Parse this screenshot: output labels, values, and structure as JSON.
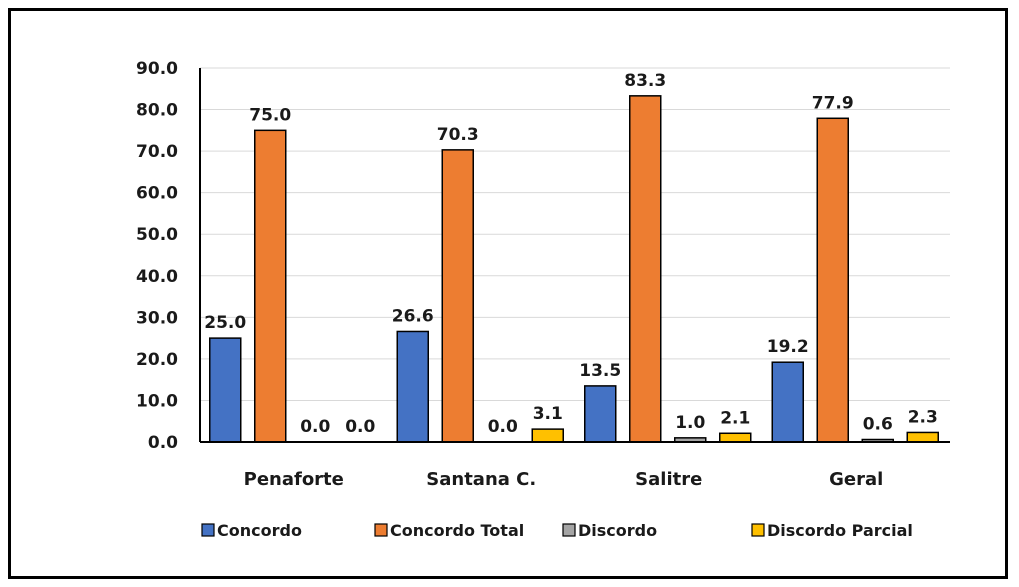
{
  "chart_data": {
    "type": "bar",
    "title": "",
    "xlabel": "",
    "ylabel": "",
    "ylim": [
      0,
      90
    ],
    "y_ticks": [
      "0.0",
      "10.0",
      "20.0",
      "30.0",
      "40.0",
      "50.0",
      "60.0",
      "70.0",
      "80.0",
      "90.0"
    ],
    "grid": true,
    "legend_position": "bottom",
    "categories": [
      "Penaforte",
      "Santana C.",
      "Salitre",
      "Geral"
    ],
    "series": [
      {
        "name": "Concordo",
        "color": "#4472c4",
        "values": [
          25.0,
          26.6,
          13.5,
          19.2
        ],
        "labels": [
          "25.0",
          "26.6",
          "13.5",
          "19.2"
        ]
      },
      {
        "name": "Concordo Total",
        "color": "#ed7d31",
        "values": [
          75.0,
          70.3,
          83.3,
          77.9
        ],
        "labels": [
          "75.0",
          "70.3",
          "83.3",
          "77.9"
        ]
      },
      {
        "name": "Discordo",
        "color": "#a5a5a5",
        "values": [
          0.0,
          0.0,
          1.0,
          0.6
        ],
        "labels": [
          "0.0",
          "0.0",
          "1.0",
          "0.6"
        ]
      },
      {
        "name": "Discordo Parcial",
        "color": "#ffc000",
        "values": [
          0.0,
          3.1,
          2.1,
          2.3
        ],
        "labels": [
          "0.0",
          "3.1",
          "2.1",
          "2.3"
        ]
      }
    ]
  }
}
